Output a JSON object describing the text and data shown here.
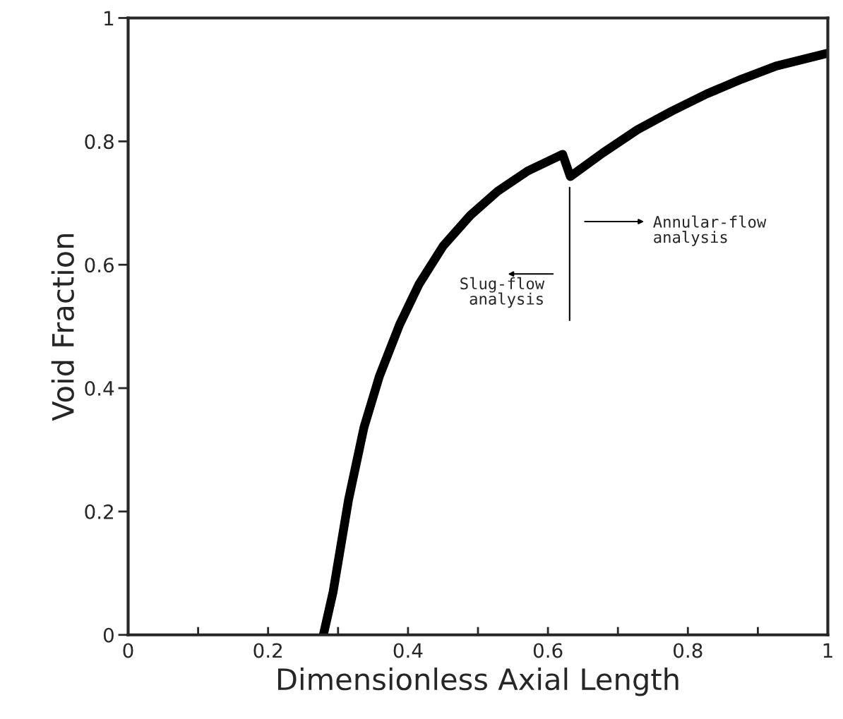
{
  "chart_data": {
    "type": "line",
    "xlabel": "Dimensionless Axial Length",
    "ylabel": "Void Fraction",
    "x": [
      0.279,
      0.293,
      0.315,
      0.337,
      0.359,
      0.388,
      0.416,
      0.45,
      0.489,
      0.528,
      0.571,
      0.621,
      0.632,
      0.678,
      0.728,
      0.777,
      0.827,
      0.877,
      0.926,
      1.0
    ],
    "series": [
      {
        "color": "#000000",
        "values": [
          0,
          0.07,
          0.219,
          0.336,
          0.419,
          0.503,
          0.569,
          0.63,
          0.68,
          0.719,
          0.752,
          0.779,
          0.743,
          0.781,
          0.819,
          0.849,
          0.877,
          0.901,
          0.922,
          0.943
        ]
      }
    ],
    "xlim": [
      0,
      1
    ],
    "ylim": [
      0,
      1
    ],
    "xticks": [
      0,
      {
        "value": 0.1,
        "label": null
      },
      0.2,
      {
        "value": 0.3,
        "label": null
      },
      0.4,
      {
        "value": 0.5,
        "label": null
      },
      0.6,
      {
        "value": 0.7,
        "label": null
      },
      0.8,
      {
        "value": 0.9,
        "label": null
      },
      1
    ],
    "yticks": [
      0,
      0.2,
      0.4,
      0.6,
      0.8,
      1
    ],
    "annotations": [
      "Slug-flow\nanalysis",
      "Annular-flow\nanalysis"
    ],
    "grid": false,
    "marker": "none",
    "line_style": "solid"
  }
}
